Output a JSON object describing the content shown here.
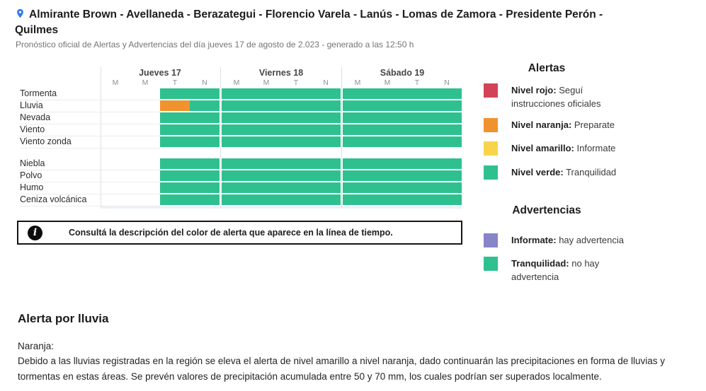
{
  "colors": {
    "red": "#d34358",
    "orange": "#f0922e",
    "yellow": "#f8d44b",
    "green": "#2ec18f",
    "purple": "#8784c8",
    "pin_blue": "#2f7be8"
  },
  "header": {
    "title": "Almirante Brown - Avellaneda - Berazategui - Florencio Varela - Lanús - Lomas de Zamora - Presidente Perón - Quilmes",
    "subtitle": "Pronóstico oficial de Alertas y Advertencias del día jueves 17 de agosto de 2.023 - generado a las 12:50 h"
  },
  "timeline": {
    "days": [
      "Jueves 17",
      "Viernes 18",
      "Sábado 19"
    ],
    "slot_letters": [
      "M",
      "M",
      "T",
      "N"
    ],
    "cell_codes": {
      "g": "green",
      "o": "orange",
      "w": "empty"
    },
    "row_groups": [
      {
        "rows": [
          {
            "label": "Tormenta",
            "cells": "wwgggggggggg"
          },
          {
            "label": "Lluvia",
            "cells": "wwoggggggggg"
          },
          {
            "label": "Nevada",
            "cells": "wwgggggggggg"
          },
          {
            "label": "Viento",
            "cells": "wwgggggggggg"
          },
          {
            "label": "Viento zonda",
            "cells": "wwgggggggggg"
          }
        ]
      },
      {
        "rows": [
          {
            "label": "Niebla",
            "cells": "wwgggggggggg"
          },
          {
            "label": "Polvo",
            "cells": "wwgggggggggg"
          },
          {
            "label": "Humo",
            "cells": "wwgggggggggg"
          },
          {
            "label": "Ceniza volcánica",
            "cells": "wwgggggggggg"
          }
        ]
      }
    ]
  },
  "note": {
    "text": "Consultá la descripción del color de alerta que aparece en la línea de tiempo."
  },
  "alerts_legend": {
    "title": "Alertas",
    "items": [
      {
        "color_key": "red",
        "bold": "Nivel rojo:",
        "text": "Seguí instrucciones oficiales"
      },
      {
        "color_key": "orange",
        "bold": "Nivel naranja:",
        "text": "Preparate"
      },
      {
        "color_key": "yellow",
        "bold": "Nivel amarillo:",
        "text": "Informate"
      },
      {
        "color_key": "green",
        "bold": "Nivel verde:",
        "text": "Tranquilidad"
      }
    ]
  },
  "advisories_legend": {
    "title": "Advertencias",
    "items": [
      {
        "color_key": "purple",
        "bold": "Informate:",
        "text": "hay advertencia"
      },
      {
        "color_key": "green",
        "bold": "Tranquilidad:",
        "text": "no hay advertencia"
      }
    ]
  },
  "alert_detail": {
    "title": "Alerta por lluvia",
    "level": "Naranja:",
    "body": "Debido a las lluvias registradas en la región se eleva el alerta de nivel amarillo a nivel naranja, dado continuarán las precipitaciones en forma de lluvias y tormentas en estas áreas. Se prevén valores de precipitación acumulada entre 50 y 70 mm, los cuales podrían ser superados localmente."
  }
}
